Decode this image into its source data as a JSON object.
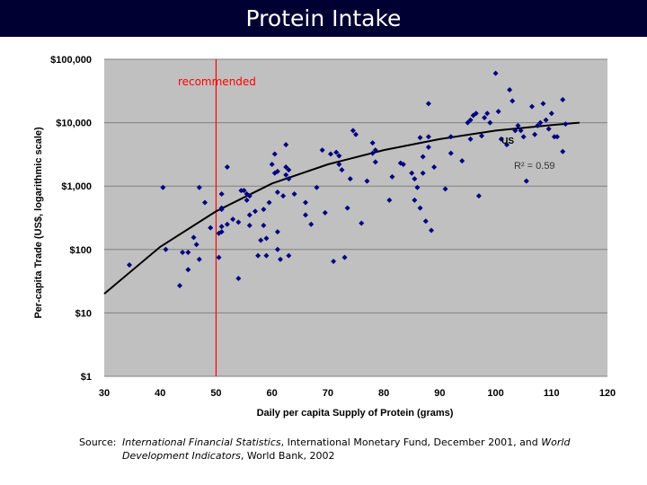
{
  "slide": {
    "title": "Protein Intake"
  },
  "source": {
    "label": "Source:",
    "italic1": "International Financial Statistics",
    "text1": ", International Monetary Fund, December 2001, and ",
    "italic2": "World Development Indicators",
    "text2": ", World Bank, 2002"
  },
  "chart_data": {
    "type": "scatter",
    "xlabel": "Daily per capita Supply of Protein (grams)",
    "ylabel": "Per-capita Trade (US$, logarithmic scale)",
    "xlim": [
      30,
      120
    ],
    "x_ticks": [
      30,
      40,
      50,
      60,
      70,
      80,
      90,
      100,
      110,
      120
    ],
    "y_scale": "log",
    "ylim": [
      1,
      100000
    ],
    "y_ticks": [
      1,
      10,
      100,
      1000,
      10000,
      100000
    ],
    "y_tick_labels": [
      "$1",
      "$10",
      "$100",
      "$1,000",
      "$10,000",
      "$100,000"
    ],
    "grid": "horizontal",
    "background_color": "#c0c0c0",
    "point_color": "#000080",
    "trend_color": "#000000",
    "annotations": [
      {
        "text": "recommended",
        "x": 50,
        "color": "#ff0000"
      },
      {
        "text": "US",
        "x": 102.5,
        "y": 4200
      },
      {
        "text": "R² = 0.59"
      }
    ],
    "trendline": {
      "points": [
        [
          30,
          20
        ],
        [
          40,
          110
        ],
        [
          50,
          400
        ],
        [
          60,
          1100
        ],
        [
          70,
          2200
        ],
        [
          80,
          3700
        ],
        [
          90,
          5500
        ],
        [
          100,
          7500
        ],
        [
          110,
          9200
        ],
        [
          115,
          10000
        ]
      ]
    },
    "series": [
      {
        "points": [
          [
            34.5,
            57
          ],
          [
            40.5,
            950
          ],
          [
            41,
            100
          ],
          [
            43.5,
            27
          ],
          [
            44,
            90
          ],
          [
            45,
            48
          ],
          [
            45,
            90
          ],
          [
            46,
            155
          ],
          [
            46.5,
            120
          ],
          [
            47,
            950
          ],
          [
            47,
            70
          ],
          [
            48,
            550
          ],
          [
            49,
            220
          ],
          [
            50.5,
            180
          ],
          [
            50.5,
            75
          ],
          [
            51,
            450
          ],
          [
            51,
            230
          ],
          [
            51,
            190
          ],
          [
            51,
            430
          ],
          [
            51,
            750
          ],
          [
            52,
            2000
          ],
          [
            52,
            250
          ],
          [
            53,
            300
          ],
          [
            54,
            35
          ],
          [
            54,
            270
          ],
          [
            54.5,
            850
          ],
          [
            55,
            850
          ],
          [
            55.5,
            750
          ],
          [
            55.5,
            600
          ],
          [
            56,
            700
          ],
          [
            56,
            350
          ],
          [
            56,
            240
          ],
          [
            57,
            400
          ],
          [
            57.5,
            80
          ],
          [
            58,
            140
          ],
          [
            58.5,
            240
          ],
          [
            58.5,
            430
          ],
          [
            59,
            80
          ],
          [
            59,
            150
          ],
          [
            59.5,
            550
          ],
          [
            60,
            2200
          ],
          [
            60.5,
            3200
          ],
          [
            60.5,
            1600
          ],
          [
            61,
            1700
          ],
          [
            61,
            800
          ],
          [
            61,
            190
          ],
          [
            61,
            100
          ],
          [
            61.5,
            70
          ],
          [
            62,
            700
          ],
          [
            62.5,
            4500
          ],
          [
            62.5,
            2000
          ],
          [
            62.5,
            1500
          ],
          [
            63,
            1800
          ],
          [
            63,
            1300
          ],
          [
            63,
            80
          ],
          [
            64,
            750
          ],
          [
            66,
            550
          ],
          [
            66,
            350
          ],
          [
            67,
            250
          ],
          [
            68,
            950
          ],
          [
            69,
            3700
          ],
          [
            69.5,
            380
          ],
          [
            70.5,
            3200
          ],
          [
            71,
            65
          ],
          [
            71.5,
            3400
          ],
          [
            72,
            3000
          ],
          [
            72,
            2200
          ],
          [
            72.5,
            1800
          ],
          [
            73,
            75
          ],
          [
            73.5,
            450
          ],
          [
            74,
            1300
          ],
          [
            74.5,
            7500
          ],
          [
            75,
            6500
          ],
          [
            76,
            260
          ],
          [
            77,
            1200
          ],
          [
            78,
            4800
          ],
          [
            78,
            3300
          ],
          [
            78.5,
            3700
          ],
          [
            78.5,
            2400
          ],
          [
            81,
            600
          ],
          [
            81.5,
            1400
          ],
          [
            83,
            2300
          ],
          [
            83.5,
            2200
          ],
          [
            85,
            1600
          ],
          [
            85.5,
            1300
          ],
          [
            85.5,
            600
          ],
          [
            86,
            950
          ],
          [
            86.5,
            450
          ],
          [
            86.5,
            5800
          ],
          [
            87,
            2900
          ],
          [
            87,
            1600
          ],
          [
            87.5,
            280
          ],
          [
            88,
            6000
          ],
          [
            88,
            4100
          ],
          [
            88,
            20000
          ],
          [
            88.5,
            200
          ],
          [
            89,
            2000
          ],
          [
            91,
            900
          ],
          [
            92,
            6000
          ],
          [
            92,
            3300
          ],
          [
            94,
            2500
          ],
          [
            95,
            10000
          ],
          [
            95.5,
            5500
          ],
          [
            95.5,
            11000
          ],
          [
            96,
            13000
          ],
          [
            96.5,
            14000
          ],
          [
            97,
            700
          ],
          [
            97.5,
            6200
          ],
          [
            98,
            12000
          ],
          [
            98.5,
            14000
          ],
          [
            99,
            10000
          ],
          [
            100,
            60000
          ],
          [
            100.5,
            15000
          ],
          [
            101,
            5500
          ],
          [
            102,
            4500
          ],
          [
            102.5,
            33000
          ],
          [
            103,
            22000
          ],
          [
            103.5,
            7500
          ],
          [
            104,
            9000
          ],
          [
            104.5,
            7500
          ],
          [
            105,
            6000
          ],
          [
            105.5,
            1200
          ],
          [
            106.5,
            18000
          ],
          [
            107,
            6500
          ],
          [
            107.5,
            9000
          ],
          [
            108,
            10000
          ],
          [
            108.5,
            20000
          ],
          [
            109,
            11000
          ],
          [
            109.5,
            8000
          ],
          [
            110,
            14000
          ],
          [
            110.5,
            6000
          ],
          [
            111,
            6000
          ],
          [
            112,
            3500
          ],
          [
            112,
            23000
          ],
          [
            112.5,
            9500
          ]
        ]
      }
    ]
  }
}
